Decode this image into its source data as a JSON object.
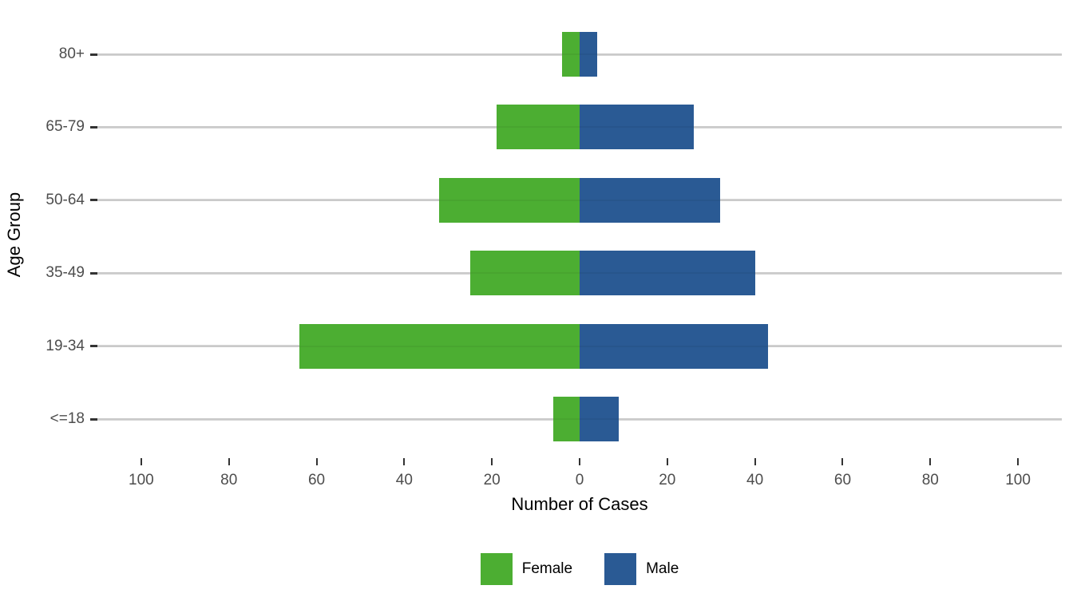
{
  "chart_data": {
    "type": "bar",
    "variant": "population-pyramid",
    "orientation": "horizontal-diverging",
    "title": "",
    "xlabel": "Number of Cases",
    "ylabel": "Age Group",
    "categories": [
      "80+",
      "65-79",
      "50-64",
      "35-49",
      "19-34",
      "<=18"
    ],
    "series": [
      {
        "name": "Female",
        "side": "left",
        "color": "#4cae32",
        "values": [
          4,
          19,
          32,
          25,
          64,
          6
        ]
      },
      {
        "name": "Male",
        "side": "right",
        "color": "#2a5a94",
        "values": [
          4,
          26,
          32,
          40,
          43,
          9
        ]
      }
    ],
    "xlim": [
      -110,
      110
    ],
    "x_ticks": [
      {
        "value": -100,
        "label": "100"
      },
      {
        "value": -80,
        "label": "80"
      },
      {
        "value": -60,
        "label": "60"
      },
      {
        "value": -40,
        "label": "40"
      },
      {
        "value": -20,
        "label": "20"
      },
      {
        "value": 0,
        "label": "0"
      },
      {
        "value": 20,
        "label": "20"
      },
      {
        "value": 40,
        "label": "40"
      },
      {
        "value": 60,
        "label": "60"
      },
      {
        "value": 80,
        "label": "80"
      },
      {
        "value": 100,
        "label": "100"
      }
    ],
    "grid": "horizontal-major-only",
    "legend_position": "bottom-center",
    "colors": {
      "background": "#ffffff",
      "gridline": "#d5d5d5",
      "tick_mark": "#333333",
      "tick_label": "#4d4d4d",
      "axis_title": "#000000",
      "female": "#4cae32",
      "male": "#2a5a94"
    }
  }
}
